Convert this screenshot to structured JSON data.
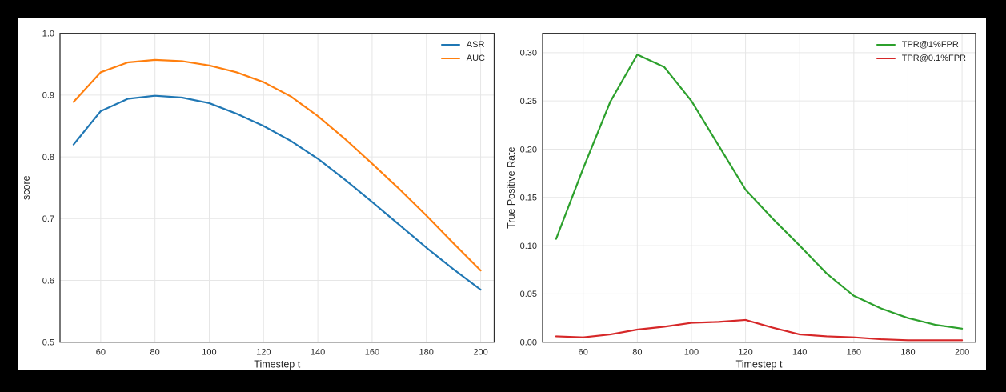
{
  "figure": {
    "frame_color": "#000000",
    "canvas_color": "#ffffff",
    "grid_color": "#e6e6e6",
    "spine_color": "#2e2e2e",
    "text_color": "#262626"
  },
  "chart_data": [
    {
      "type": "line",
      "title": "",
      "xlabel": "Timestep t",
      "ylabel": "score",
      "xlim": [
        45,
        205
      ],
      "ylim": [
        0.5,
        1.0
      ],
      "grid": true,
      "legend_position": "upper-right",
      "xticks": {
        "values": [
          60,
          80,
          100,
          120,
          140,
          160,
          180,
          200
        ],
        "labels": [
          "60",
          "80",
          "100",
          "120",
          "140",
          "160",
          "180",
          "200"
        ]
      },
      "yticks": {
        "values": [
          0.5,
          0.6,
          0.7,
          0.8,
          0.9,
          1.0
        ],
        "labels": [
          "0.5",
          "0.6",
          "0.7",
          "0.8",
          "0.9",
          "1.0"
        ]
      },
      "x": [
        50,
        60,
        70,
        80,
        90,
        100,
        110,
        120,
        130,
        140,
        150,
        160,
        170,
        180,
        190,
        200
      ],
      "series": [
        {
          "name": "ASR",
          "color": "#1f77b4",
          "values": [
            0.82,
            0.874,
            0.894,
            0.899,
            0.896,
            0.887,
            0.87,
            0.85,
            0.826,
            0.797,
            0.763,
            0.727,
            0.69,
            0.653,
            0.618,
            0.585
          ]
        },
        {
          "name": "AUC",
          "color": "#ff7f0e",
          "values": [
            0.889,
            0.937,
            0.953,
            0.957,
            0.955,
            0.948,
            0.937,
            0.921,
            0.898,
            0.866,
            0.829,
            0.789,
            0.748,
            0.705,
            0.66,
            0.616
          ]
        }
      ]
    },
    {
      "type": "line",
      "title": "",
      "xlabel": "Timestep t",
      "ylabel": "True Positive Rate",
      "xlim": [
        45,
        205
      ],
      "ylim": [
        0.0,
        0.32
      ],
      "grid": true,
      "legend_position": "upper-right",
      "xticks": {
        "values": [
          60,
          80,
          100,
          120,
          140,
          160,
          180,
          200
        ],
        "labels": [
          "60",
          "80",
          "100",
          "120",
          "140",
          "160",
          "180",
          "200"
        ]
      },
      "yticks": {
        "values": [
          0.0,
          0.05,
          0.1,
          0.15,
          0.2,
          0.25,
          0.3
        ],
        "labels": [
          "0.00",
          "0.05",
          "0.10",
          "0.15",
          "0.20",
          "0.25",
          "0.30"
        ]
      },
      "x": [
        50,
        60,
        70,
        80,
        90,
        100,
        110,
        120,
        130,
        140,
        150,
        160,
        170,
        180,
        190,
        200
      ],
      "series": [
        {
          "name": "TPR@1%FPR",
          "color": "#2ca02c",
          "values": [
            0.107,
            0.18,
            0.249,
            0.298,
            0.285,
            0.25,
            0.204,
            0.158,
            0.128,
            0.1,
            0.071,
            0.048,
            0.035,
            0.025,
            0.018,
            0.014
          ]
        },
        {
          "name": "TPR@0.1%FPR",
          "color": "#d62728",
          "values": [
            0.006,
            0.005,
            0.008,
            0.013,
            0.016,
            0.02,
            0.021,
            0.023,
            0.015,
            0.008,
            0.006,
            0.005,
            0.003,
            0.002,
            0.002,
            0.002
          ]
        }
      ]
    }
  ]
}
